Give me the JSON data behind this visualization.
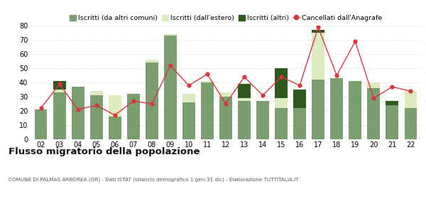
{
  "years": [
    "02",
    "03",
    "04",
    "05",
    "06",
    "07",
    "08",
    "09",
    "10",
    "11",
    "12",
    "13",
    "14",
    "15",
    "16",
    "17",
    "18",
    "19",
    "20",
    "21",
    "22"
  ],
  "iscritti_altri_comuni": [
    21,
    33,
    37,
    31,
    16,
    32,
    54,
    73,
    26,
    40,
    30,
    27,
    27,
    22,
    22,
    42,
    43,
    41,
    36,
    24,
    22
  ],
  "iscritti_estero": [
    0,
    2,
    0,
    3,
    15,
    0,
    2,
    1,
    6,
    1,
    3,
    2,
    0,
    7,
    0,
    33,
    0,
    0,
    4,
    0,
    12
  ],
  "iscritti_altri": [
    0,
    6,
    0,
    0,
    0,
    0,
    0,
    0,
    0,
    0,
    0,
    10,
    0,
    21,
    13,
    2,
    0,
    0,
    0,
    3,
    0
  ],
  "cancellati": [
    22,
    39,
    21,
    24,
    17,
    27,
    25,
    52,
    38,
    46,
    25,
    44,
    31,
    44,
    38,
    79,
    45,
    69,
    29,
    37,
    34
  ],
  "color_altri_comuni": "#7a9e6e",
  "color_estero": "#ddebbe",
  "color_altri": "#2d5a1b",
  "color_cancellati": "#d9363e",
  "title": "Flusso migratorio della popolazione",
  "subtitle": "COMUNE DI PALMAS ARBOREA (OR) - Dati ISTAT (bilancio demografico 1 gen-31 dic) - Elaborazione TUTTITALIA.IT",
  "legend_labels": [
    "Iscritti (da altri comuni)",
    "Iscritti (dall'estero)",
    "Iscritti (altri)",
    "Cancellati dall'Anagrafe"
  ],
  "ylim": [
    0,
    80
  ],
  "yticks": [
    0,
    10,
    20,
    30,
    40,
    50,
    60,
    70,
    80
  ],
  "background_color": "#ffffff",
  "grid_color": "#d0d0d0"
}
